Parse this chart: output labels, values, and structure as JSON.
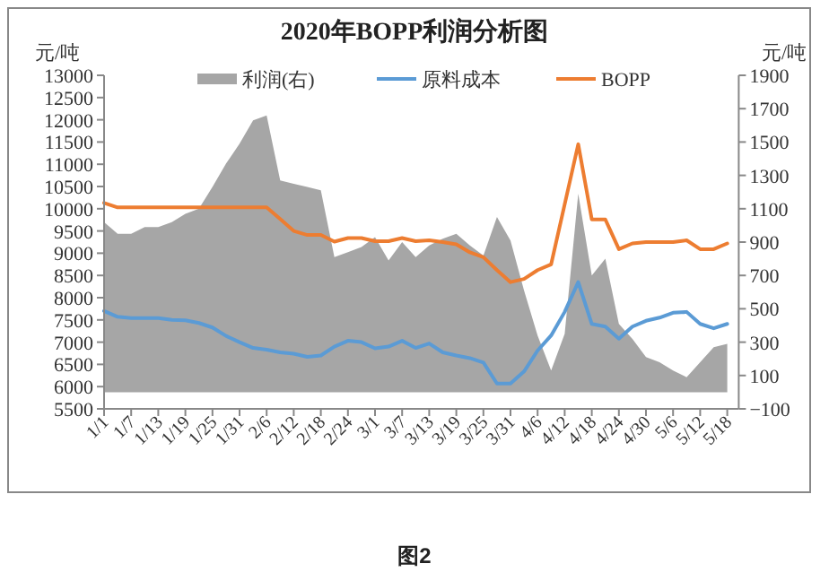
{
  "chart_data": {
    "type": "line",
    "title": "2020年BOPP利润分析图",
    "ylabel": "元/吨",
    "y2label": "元/吨",
    "categories": [
      "1/1",
      null,
      "1/7",
      null,
      "1/13",
      null,
      "1/19",
      null,
      "1/25",
      null,
      "1/31",
      null,
      "2/6",
      null,
      "2/12",
      null,
      "2/18",
      null,
      "2/24",
      null,
      "3/1",
      null,
      "3/7",
      null,
      "3/13",
      null,
      "3/19",
      null,
      "3/25",
      null,
      "3/31",
      null,
      "4/6",
      null,
      "4/12",
      null,
      "4/18",
      null,
      "4/24",
      null,
      "4/30",
      null,
      "5/6",
      null,
      "5/12",
      null,
      "5/18"
    ],
    "series": [
      {
        "name": "利润(右)",
        "type": "area",
        "axis": "y2",
        "color": "#a6a6a6",
        "values": [
          1020,
          950,
          950,
          990,
          990,
          1020,
          1070,
          1100,
          1230,
          1370,
          1490,
          1630,
          1660,
          1270,
          1250,
          1230,
          1210,
          810,
          840,
          870,
          930,
          790,
          900,
          810,
          880,
          920,
          950,
          880,
          820,
          1050,
          910,
          610,
          340,
          130,
          350,
          1190,
          700,
          800,
          410,
          320,
          210,
          180,
          130,
          90,
          180,
          270,
          290
        ]
      },
      {
        "name": "原料成本",
        "color": "#5b9bd5",
        "values": [
          7700,
          7570,
          7540,
          7540,
          7540,
          7500,
          7490,
          7430,
          7330,
          7140,
          7000,
          6870,
          6830,
          6770,
          6740,
          6670,
          6700,
          6900,
          7030,
          7000,
          6860,
          6900,
          7030,
          6870,
          6970,
          6770,
          6700,
          6640,
          6540,
          6070,
          6070,
          6340,
          6810,
          7150,
          7680,
          8350,
          7410,
          7350,
          7080,
          7350,
          7480,
          7550,
          7660,
          7680,
          7410,
          7310,
          7410
        ]
      },
      {
        "name": "BOPP",
        "color": "#ed7d31",
        "values": [
          10130,
          10030,
          10030,
          10030,
          10030,
          10030,
          10030,
          10030,
          10030,
          10030,
          10030,
          10030,
          10030,
          9770,
          9500,
          9410,
          9410,
          9260,
          9340,
          9340,
          9270,
          9270,
          9340,
          9270,
          9290,
          9250,
          9200,
          9020,
          8910,
          8620,
          8350,
          8420,
          8620,
          8750,
          10100,
          11450,
          9760,
          9760,
          9090,
          9220,
          9250,
          9250,
          9250,
          9290,
          9090,
          9090,
          9220
        ]
      }
    ],
    "ylim": [
      5500,
      13000
    ],
    "yticks": [
      5500,
      6000,
      6500,
      7000,
      7500,
      8000,
      8500,
      9000,
      9500,
      10000,
      10500,
      11000,
      11500,
      12000,
      12500,
      13000
    ],
    "y2lim": [
      -100,
      1900
    ],
    "y2ticks": [
      {
        "value": -100,
        "label": "−100"
      },
      100,
      300,
      500,
      700,
      900,
      1100,
      1300,
      1500,
      1700,
      1900
    ],
    "legend": "top",
    "grid": false,
    "marker": "none",
    "line_style": "solid",
    "annotations": [
      "图2"
    ]
  }
}
